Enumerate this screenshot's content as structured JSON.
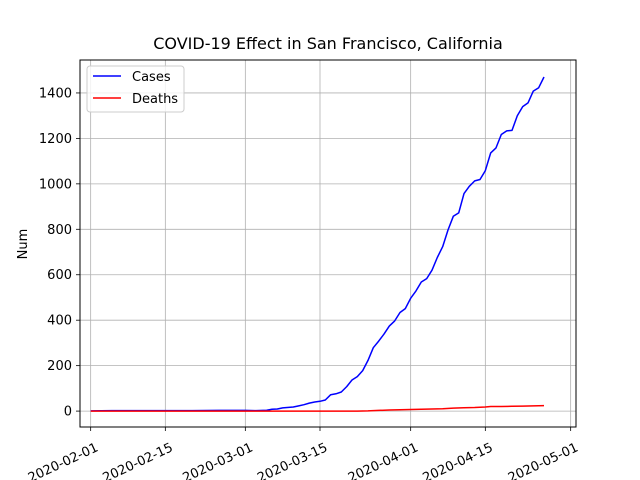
{
  "chart_data": {
    "type": "line",
    "title": "COVID-19 Effect in San Francisco, California",
    "xlabel": "",
    "ylabel": "Num",
    "x_axis_type": "date",
    "xlim": [
      "2020-01-30",
      "2020-05-02"
    ],
    "ylim": [
      -70,
      1545
    ],
    "grid": true,
    "legend_position": "top-left",
    "x_ticks": [
      "2020-02-01",
      "2020-02-15",
      "2020-03-01",
      "2020-03-15",
      "2020-04-01",
      "2020-04-15",
      "2020-05-01"
    ],
    "y_ticks": [
      0,
      200,
      400,
      600,
      800,
      1000,
      1200,
      1400
    ],
    "series": [
      {
        "name": "Cases",
        "color": "#0000ff",
        "points": [
          [
            "2020-02-01",
            1
          ],
          [
            "2020-02-05",
            2
          ],
          [
            "2020-02-10",
            2
          ],
          [
            "2020-02-15",
            2
          ],
          [
            "2020-02-20",
            2
          ],
          [
            "2020-02-25",
            3
          ],
          [
            "2020-03-01",
            3
          ],
          [
            "2020-03-03",
            2
          ],
          [
            "2020-03-05",
            4
          ],
          [
            "2020-03-06",
            8
          ],
          [
            "2020-03-07",
            9
          ],
          [
            "2020-03-08",
            14
          ],
          [
            "2020-03-10",
            18
          ],
          [
            "2020-03-11",
            23
          ],
          [
            "2020-03-12",
            28
          ],
          [
            "2020-03-13",
            35
          ],
          [
            "2020-03-14",
            40
          ],
          [
            "2020-03-15",
            43
          ],
          [
            "2020-03-16",
            49
          ],
          [
            "2020-03-17",
            72
          ],
          [
            "2020-03-18",
            76
          ],
          [
            "2020-03-19",
            84
          ],
          [
            "2020-03-20",
            108
          ],
          [
            "2020-03-21",
            137
          ],
          [
            "2020-03-22",
            152
          ],
          [
            "2020-03-23",
            178
          ],
          [
            "2020-03-24",
            223
          ],
          [
            "2020-03-25",
            279
          ],
          [
            "2020-03-26",
            308
          ],
          [
            "2020-03-27",
            339
          ],
          [
            "2020-03-28",
            374
          ],
          [
            "2020-03-29",
            397
          ],
          [
            "2020-03-30",
            434
          ],
          [
            "2020-03-31",
            451
          ],
          [
            "2020-04-01",
            497
          ],
          [
            "2020-04-02",
            529
          ],
          [
            "2020-04-03",
            568
          ],
          [
            "2020-04-04",
            583
          ],
          [
            "2020-04-05",
            620
          ],
          [
            "2020-04-06",
            676
          ],
          [
            "2020-04-07",
            724
          ],
          [
            "2020-04-08",
            797
          ],
          [
            "2020-04-09",
            857
          ],
          [
            "2020-04-10",
            872
          ],
          [
            "2020-04-11",
            957
          ],
          [
            "2020-04-12",
            989
          ],
          [
            "2020-04-13",
            1013
          ],
          [
            "2020-04-14",
            1019
          ],
          [
            "2020-04-15",
            1058
          ],
          [
            "2020-04-16",
            1136
          ],
          [
            "2020-04-17",
            1158
          ],
          [
            "2020-04-18",
            1217
          ],
          [
            "2020-04-19",
            1233
          ],
          [
            "2020-04-20",
            1235
          ],
          [
            "2020-04-21",
            1300
          ],
          [
            "2020-04-22",
            1340
          ],
          [
            "2020-04-23",
            1356
          ],
          [
            "2020-04-24",
            1408
          ],
          [
            "2020-04-25",
            1423
          ],
          [
            "2020-04-26",
            1470
          ]
        ]
      },
      {
        "name": "Deaths",
        "color": "#ff0000",
        "points": [
          [
            "2020-02-01",
            0
          ],
          [
            "2020-03-01",
            0
          ],
          [
            "2020-03-15",
            0
          ],
          [
            "2020-03-22",
            0
          ],
          [
            "2020-03-24",
            1
          ],
          [
            "2020-03-26",
            3
          ],
          [
            "2020-03-28",
            5
          ],
          [
            "2020-03-30",
            6
          ],
          [
            "2020-04-01",
            7
          ],
          [
            "2020-04-03",
            8
          ],
          [
            "2020-04-05",
            9
          ],
          [
            "2020-04-07",
            10
          ],
          [
            "2020-04-09",
            13
          ],
          [
            "2020-04-11",
            15
          ],
          [
            "2020-04-13",
            16
          ],
          [
            "2020-04-15",
            18
          ],
          [
            "2020-04-16",
            20
          ],
          [
            "2020-04-18",
            20
          ],
          [
            "2020-04-20",
            21
          ],
          [
            "2020-04-22",
            22
          ],
          [
            "2020-04-24",
            23
          ],
          [
            "2020-04-26",
            24
          ]
        ]
      }
    ]
  }
}
